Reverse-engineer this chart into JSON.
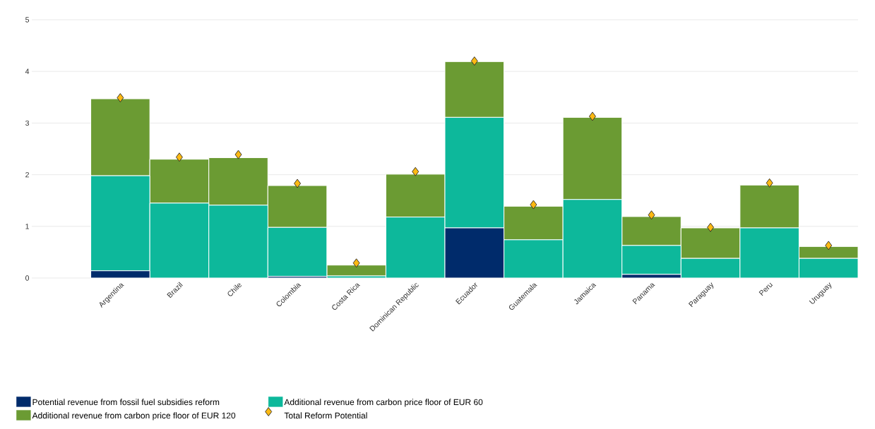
{
  "chart_data": {
    "type": "bar",
    "stacked": true,
    "grid": "y",
    "legend": "bottom left",
    "ylim": [
      0,
      5
    ],
    "yticks": [
      0,
      1,
      2,
      3,
      4,
      5
    ],
    "categories": [
      "Argentina",
      "Brazil",
      "Chile",
      "Colombia",
      "Costa Rica",
      "Dominican Republic",
      "Ecuador",
      "Guatemala",
      "Jamaica",
      "Panama",
      "Paraguay",
      "Peru",
      "Uruguay"
    ],
    "series": [
      {
        "name": "Potential revenue from fossil fuel subsidies reform",
        "color": "#002b6b",
        "values": [
          0.14,
          null,
          null,
          0.03,
          null,
          null,
          0.97,
          0,
          0,
          0.07,
          0,
          0,
          0
        ]
      },
      {
        "name": "Additional revenue from carbon price floor of EUR 60",
        "color": "#0db89b",
        "values": [
          1.84,
          1.45,
          1.41,
          0.95,
          0.04,
          1.18,
          2.14,
          0.74,
          1.52,
          0.56,
          0.38,
          0.97,
          0.38
        ]
      },
      {
        "name": "Additional revenue from carbon price floor of EUR 120",
        "color": "#6b9b33",
        "values": [
          1.49,
          0.85,
          0.92,
          0.81,
          0.21,
          0.83,
          1.08,
          0.65,
          1.59,
          0.56,
          0.59,
          0.83,
          0.23
        ]
      },
      {
        "name": "Total Reform Potential",
        "type": "scatter",
        "marker": "diamond",
        "color": "#fcb913",
        "x": [
          "Argentina",
          "Brazil",
          "Chile",
          "Colombia",
          "Costa Rica",
          "Dominican Republic",
          "Ecuador",
          "Guatemala",
          "Jamaica",
          "Panama",
          "Paraguay",
          "Peru",
          "Uruguay"
        ],
        "values": [
          3.49,
          2.34,
          2.39,
          1.83,
          0.29,
          2.06,
          4.2,
          1.42,
          3.13,
          1.22,
          0.98,
          1.84,
          0.63
        ]
      }
    ]
  }
}
